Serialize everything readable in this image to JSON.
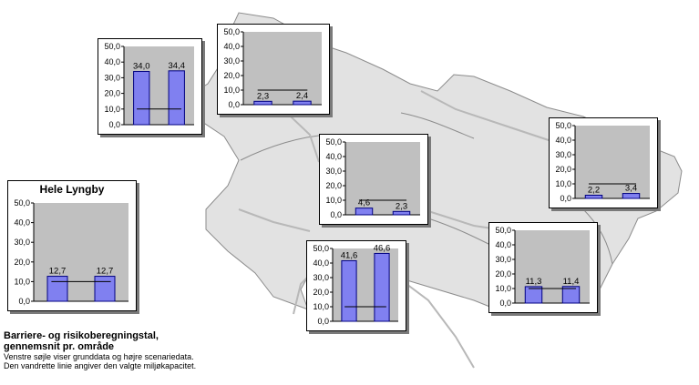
{
  "colors": {
    "map_fill": "#e2e2e2",
    "map_stroke": "#8c8c8c",
    "road": "#b8b8b8",
    "plot_bg": "#c0c0c0",
    "bar": "#8080f0",
    "bar_edge": "#000080",
    "capacity_line": "#000000"
  },
  "caption": {
    "heading_line1": "Barriere- og risikoberegningstal,",
    "heading_line2": "gennemsnit pr. område",
    "note_line1": "Venstre søjle viser grunddata og højre scenariedata.",
    "note_line2": "Den vandrette linie angiver den valgte miljøkapacitet."
  },
  "chart_data": [
    {
      "type": "bar",
      "title": "Hele Lyngby",
      "yticks": [
        "0,0",
        "10,0",
        "20,0",
        "30,0",
        "40,0",
        "50,0"
      ],
      "ylim": [
        0,
        50
      ],
      "values": [
        12.7,
        12.7
      ],
      "labels": [
        "12,7",
        "12,7"
      ],
      "capacity": 10,
      "grid": false,
      "legend": "none"
    },
    {
      "type": "bar",
      "title": "",
      "yticks": [
        "0,0",
        "10,0",
        "20,0",
        "30,0",
        "40,0",
        "50,0"
      ],
      "ylim": [
        0,
        50
      ],
      "values": [
        34.0,
        34.4
      ],
      "labels": [
        "34,0",
        "34,4"
      ],
      "capacity": 10,
      "grid": false,
      "legend": "none"
    },
    {
      "type": "bar",
      "title": "",
      "yticks": [
        "0,0",
        "10,0",
        "20,0",
        "30,0",
        "40,0",
        "50,0"
      ],
      "ylim": [
        0,
        50
      ],
      "values": [
        2.3,
        2.4
      ],
      "labels": [
        "2,3",
        "2,4"
      ],
      "capacity": 10,
      "grid": false,
      "legend": "none"
    },
    {
      "type": "bar",
      "title": "",
      "yticks": [
        "0,0",
        "10,0",
        "20,0",
        "30,0",
        "40,0",
        "50,0"
      ],
      "ylim": [
        0,
        50
      ],
      "values": [
        4.6,
        2.3
      ],
      "labels": [
        "4,6",
        "2,3"
      ],
      "capacity": 10,
      "grid": false,
      "legend": "none"
    },
    {
      "type": "bar",
      "title": "",
      "yticks": [
        "0,0",
        "10,0",
        "20,0",
        "30,0",
        "40,0",
        "50,0"
      ],
      "ylim": [
        0,
        50
      ],
      "values": [
        2.2,
        3.4
      ],
      "labels": [
        "2,2",
        "3,4"
      ],
      "capacity": 10,
      "grid": false,
      "legend": "none"
    },
    {
      "type": "bar",
      "title": "",
      "yticks": [
        "0,0",
        "10,0",
        "20,0",
        "30,0",
        "40,0",
        "50,0"
      ],
      "ylim": [
        0,
        50
      ],
      "values": [
        41.6,
        46.6
      ],
      "labels": [
        "41,6",
        "46,6"
      ],
      "capacity": 10,
      "grid": false,
      "legend": "none"
    },
    {
      "type": "bar",
      "title": "",
      "yticks": [
        "0,0",
        "10,0",
        "20,0",
        "30,0",
        "40,0",
        "50,0"
      ],
      "ylim": [
        0,
        50
      ],
      "values": [
        11.3,
        11.4
      ],
      "labels": [
        "11,3",
        "11,4"
      ],
      "capacity": 10,
      "grid": false,
      "legend": "none"
    }
  ]
}
